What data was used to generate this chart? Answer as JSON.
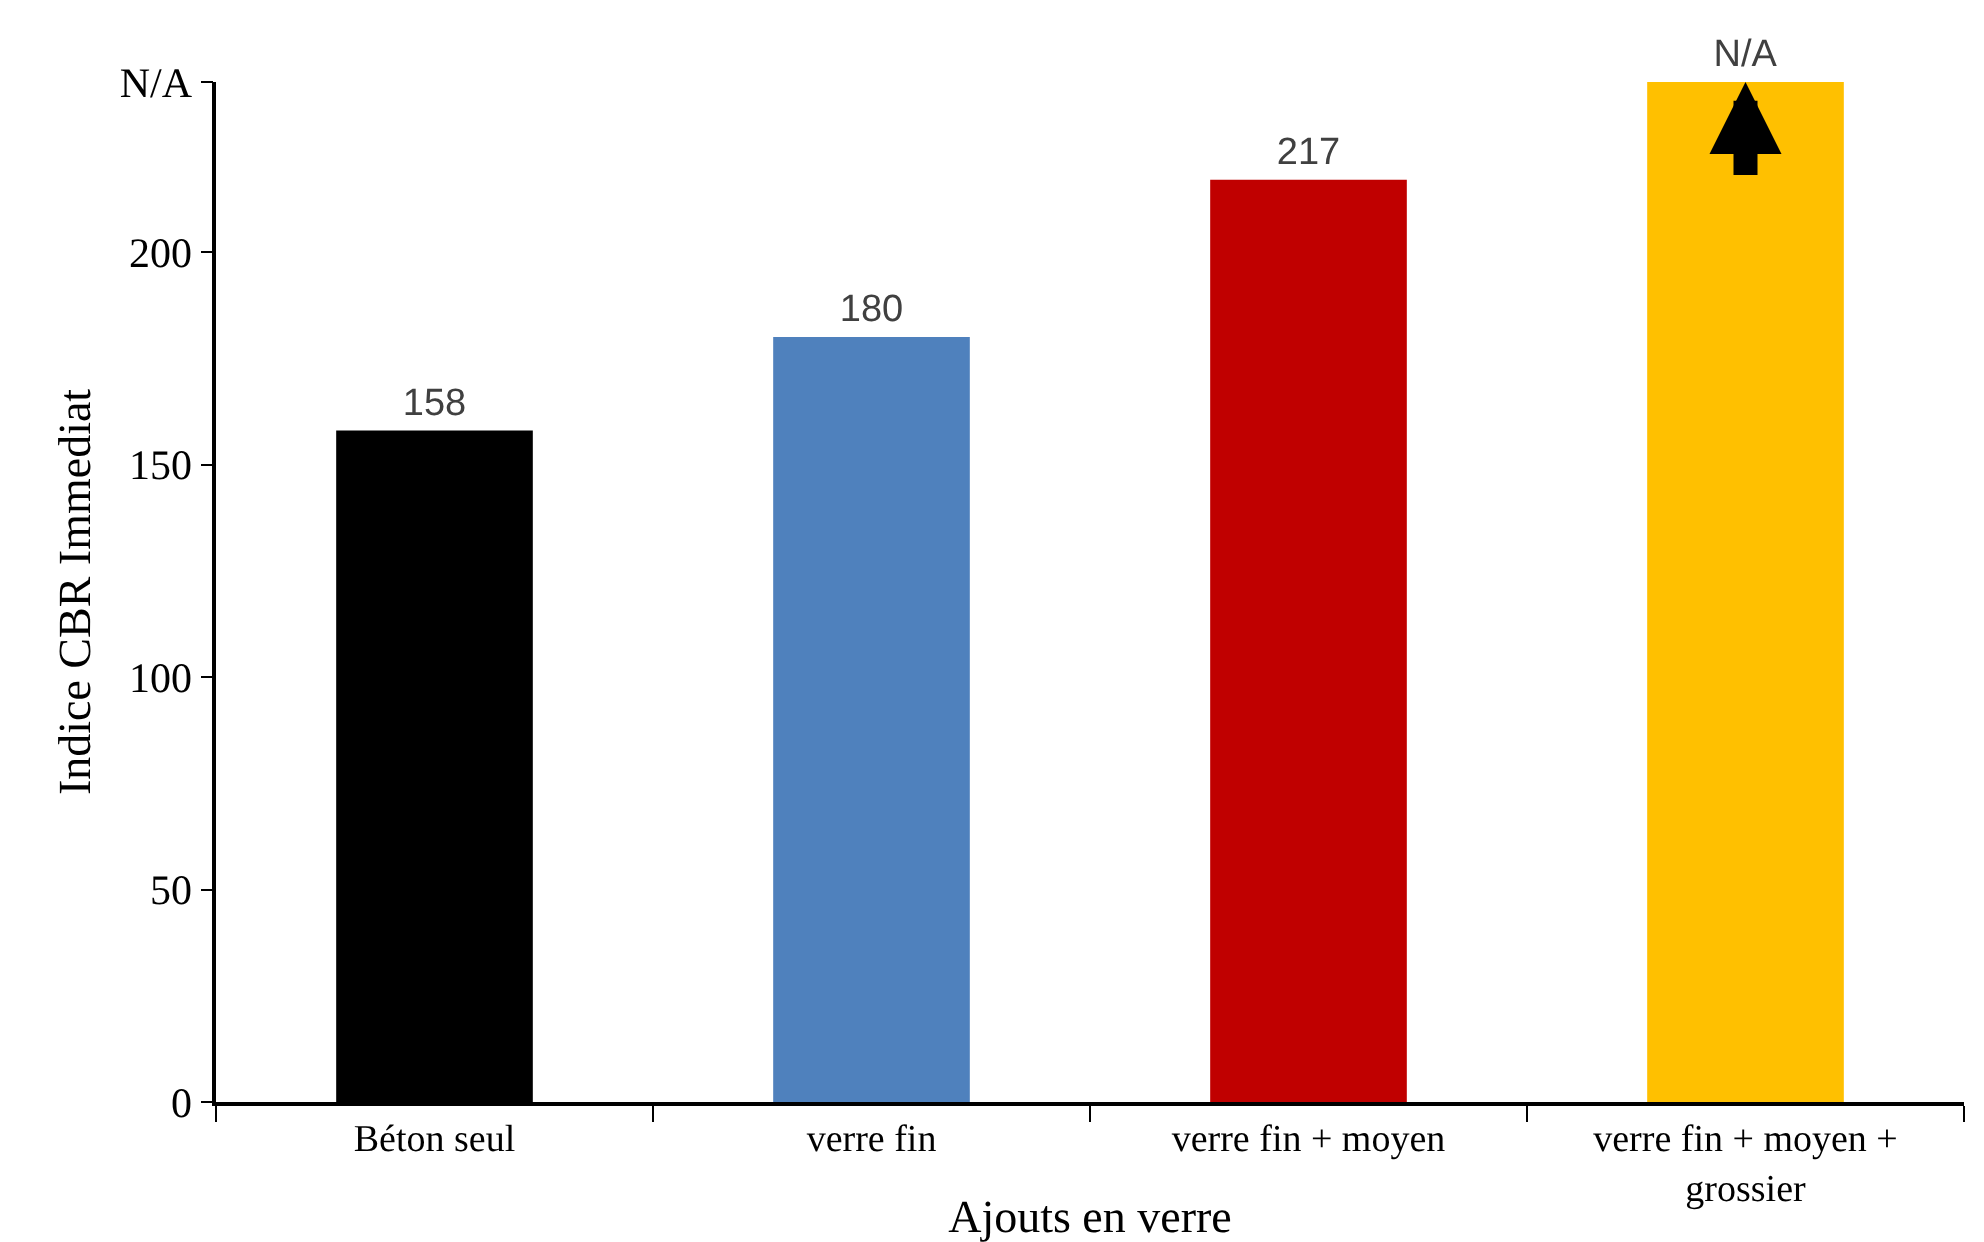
{
  "chart_data": {
    "type": "bar",
    "xlabel": "Ajouts en verre",
    "ylabel": "Indice CBR Immediat",
    "categories": [
      "Béton seul",
      "verre fin",
      "verre fin + moyen",
      "verre fin + moyen + grossier"
    ],
    "values": [
      158,
      180,
      217,
      240
    ],
    "colors": [
      "#000000",
      "#4f81bd",
      "#c00000",
      "#ffc000"
    ],
    "value_labels": [
      "158",
      "180",
      "217",
      "N/A"
    ],
    "ylim": [
      0,
      240
    ],
    "yticks": [
      0,
      50,
      100,
      150,
      200,
      {
        "value": 240,
        "label": "N/A"
      }
    ]
  }
}
